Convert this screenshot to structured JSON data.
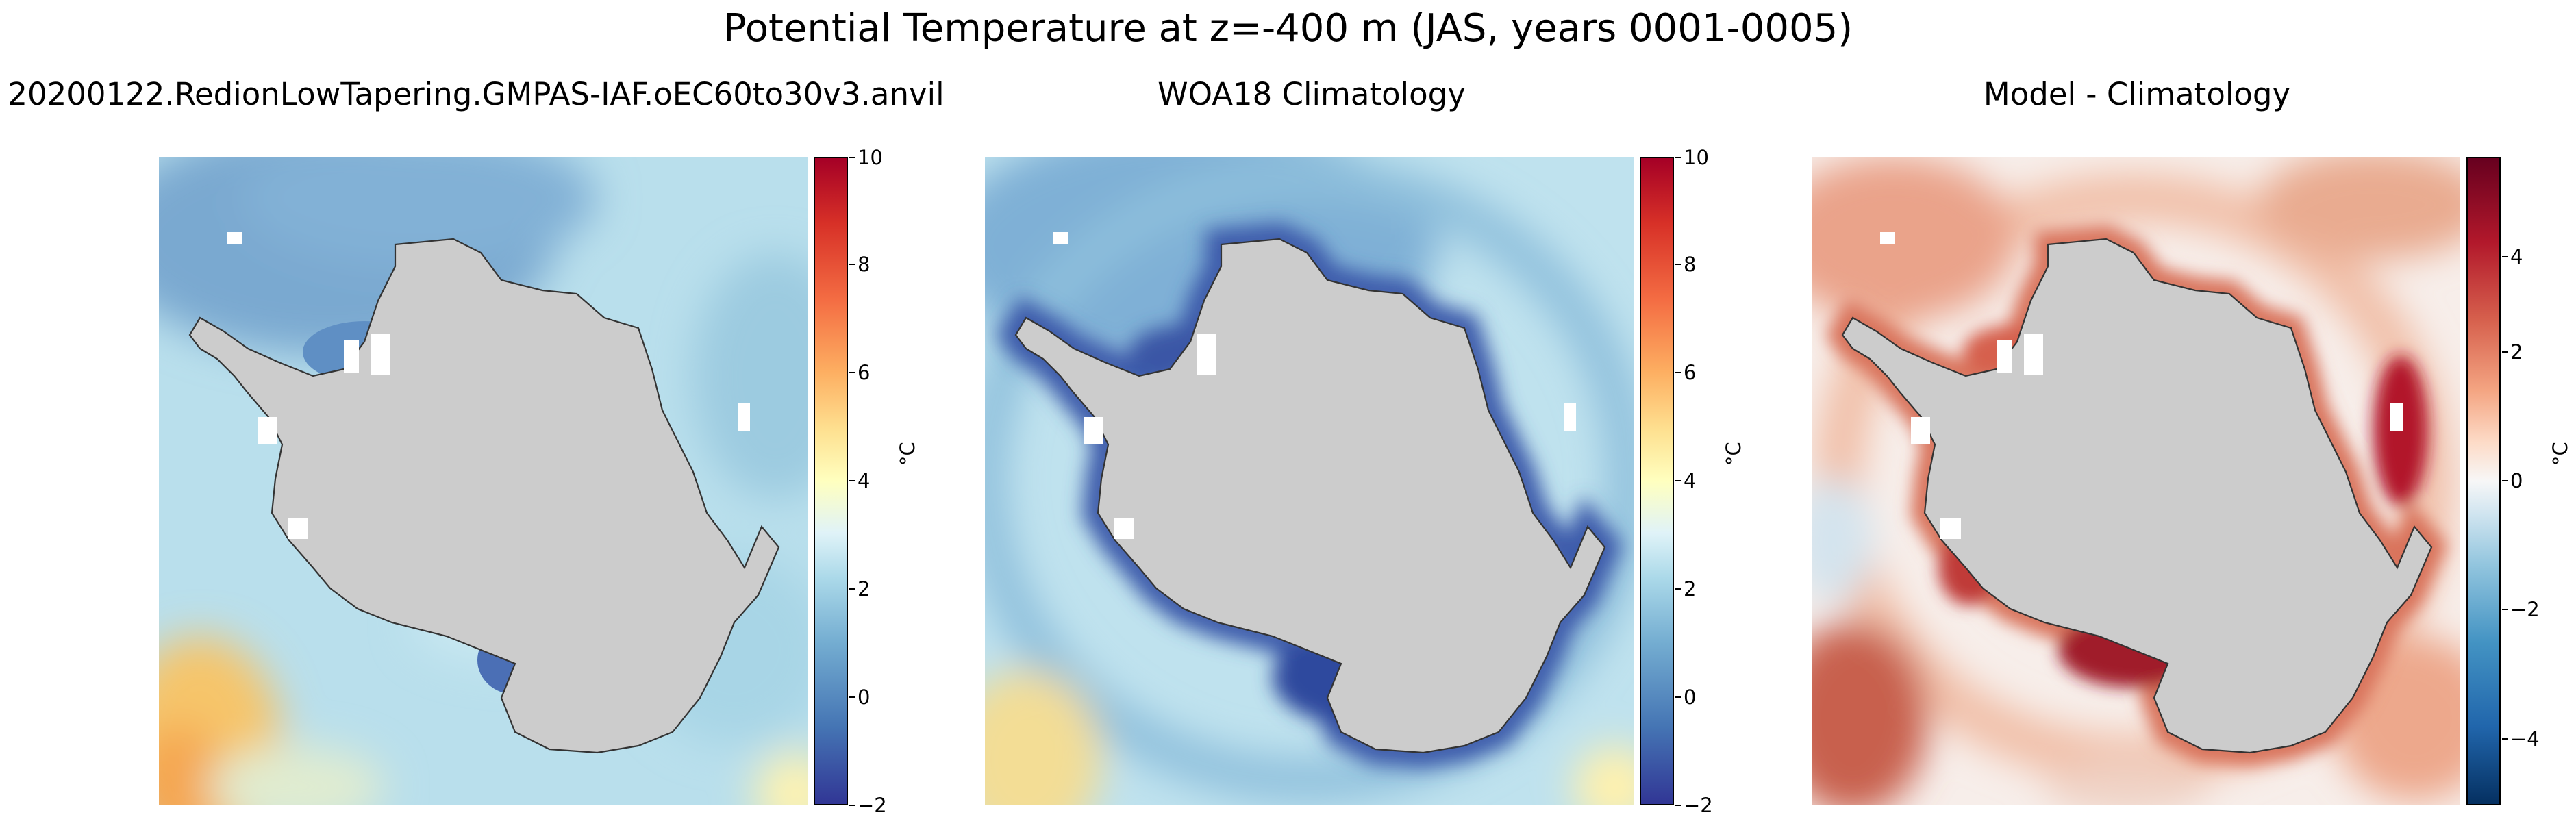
{
  "figure": {
    "suptitle": "Potential Temperature at z=-400 m (JAS, years 0001-0005)",
    "unit_label": "°C"
  },
  "panels": [
    {
      "title": "20200122.RedionLowTapering.GMPAS-IAF.oEC60to30v3.anvil",
      "colorbar_ticks": [
        "10",
        "8",
        "6",
        "4",
        "2",
        "0",
        "−2"
      ]
    },
    {
      "title": "WOA18 Climatology",
      "colorbar_ticks": [
        "10",
        "8",
        "6",
        "4",
        "2",
        "0",
        "−2"
      ]
    },
    {
      "title": "Model - Climatology",
      "colorbar_ticks": [
        "4",
        "2",
        "0",
        "−2",
        "−4"
      ]
    }
  ],
  "chart_data": [
    {
      "type": "heatmap",
      "title": "20200122.RedionLowTapering.GMPAS-IAF.oEC60to30v3.anvil",
      "projection": "south polar stereographic",
      "variable": "potential temperature",
      "depth": "z=-400 m",
      "season": "JAS",
      "years": "0001-0005",
      "colormap": "RdYlBu_r",
      "vmin": -2,
      "vmax": 10,
      "ticks": [
        -2,
        0,
        2,
        4,
        6,
        8,
        10
      ],
      "colorbar_label": "°C",
      "approx_values": {
        "open_ocean": 1.5,
        "weddell_sea": -1.0,
        "ross_sea": -1.5,
        "northern_edge_max": 5.0
      }
    },
    {
      "type": "heatmap",
      "title": "WOA18 Climatology",
      "projection": "south polar stereographic",
      "colormap": "RdYlBu_r",
      "vmin": -2,
      "vmax": 10,
      "ticks": [
        -2,
        0,
        2,
        4,
        6,
        8,
        10
      ],
      "colorbar_label": "°C",
      "approx_values": {
        "open_ocean": 1.5,
        "weddell_sea": -1.0,
        "shelf_seas": -1.8,
        "northern_edge_max": 4.5
      }
    },
    {
      "type": "heatmap",
      "title": "Model - Climatology",
      "projection": "south polar stereographic",
      "colormap": "RdBu_r",
      "vmin": -5,
      "vmax": 5,
      "ticks": [
        -4,
        -2,
        0,
        2,
        4
      ],
      "colorbar_label": "°C",
      "approx_values": {
        "open_ocean": 0.5,
        "continental_margin": 2.5,
        "ross_sea": 4.0,
        "northern_edge_max": 3.0
      }
    }
  ]
}
